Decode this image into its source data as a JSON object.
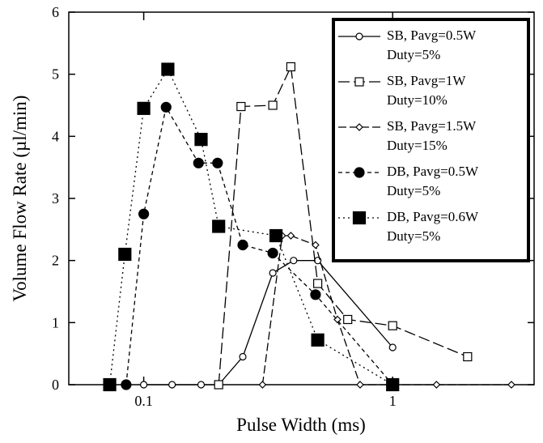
{
  "chart_data": {
    "type": "line",
    "xlabel": "Pulse Width (ms)",
    "ylabel": "Volume Flow Rate (µl/min)",
    "xscale": "log",
    "xlim": [
      0.05,
      3.7
    ],
    "xticks": [
      0.1,
      1
    ],
    "ylim": [
      0,
      6
    ],
    "yticks": [
      0,
      1,
      2,
      3,
      4,
      5,
      6
    ],
    "series": [
      {
        "name": "SB, Pavg=0.5W\nDuty=5%",
        "color": "#000000",
        "marker": "open-circle",
        "dash": "none",
        "x": [
          0.1,
          0.13,
          0.17,
          0.2,
          0.25,
          0.33,
          0.4,
          0.5,
          1
        ],
        "values": [
          0,
          0,
          0,
          0,
          0.45,
          1.8,
          2.0,
          2.0,
          0.6
        ]
      },
      {
        "name": "SB, Pavg=1W\nDuty=10%",
        "color": "#000000",
        "marker": "open-square",
        "dash": "14 5",
        "x": [
          0.2,
          0.246,
          0.33,
          0.39,
          0.5,
          0.66,
          1,
          2.0
        ],
        "values": [
          0,
          4.48,
          4.5,
          5.12,
          1.63,
          1.05,
          0.95,
          0.45
        ]
      },
      {
        "name": "SB, Pavg=1.5W\nDuty=15%",
        "color": "#000000",
        "marker": "open-diamond",
        "dash": "10 4",
        "x": [
          0.3,
          0.36,
          0.39,
          0.49,
          0.6,
          0.74,
          1.5,
          3.0
        ],
        "values": [
          0,
          2.4,
          2.4,
          2.25,
          1.05,
          0,
          0,
          0
        ]
      },
      {
        "name": "DB, Pavg=0.5W\nDuty=5%",
        "color": "#000000",
        "marker": "filled-circle",
        "dash": "5 4",
        "x": [
          0.085,
          0.1,
          0.123,
          0.166,
          0.198,
          0.25,
          0.33,
          0.49,
          1
        ],
        "values": [
          0,
          2.75,
          4.47,
          3.57,
          3.57,
          2.25,
          2.12,
          1.45,
          0
        ]
      },
      {
        "name": "DB, Pavg=0.6W\nDuty=5%",
        "color": "#000000",
        "marker": "filled-square",
        "dash": "2 4",
        "x": [
          0.073,
          0.084,
          0.1,
          0.125,
          0.17,
          0.2,
          0.34,
          0.5,
          1
        ],
        "values": [
          0,
          2.1,
          4.45,
          5.08,
          3.95,
          2.55,
          2.4,
          0.72,
          0
        ]
      }
    ]
  }
}
